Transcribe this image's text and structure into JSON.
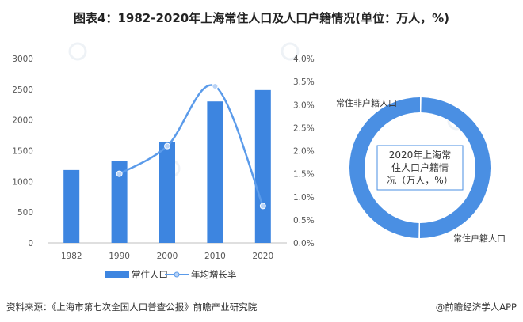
{
  "title": "图表4：1982-2020年上海常住人口及人口户籍情况(单位：万人，%)",
  "source": "资料来源：《上海市第七次全国人口普查公报》前瞻产业研究院",
  "brand": "@前瞻经济学人APP",
  "chart_data": [
    {
      "type": "bar",
      "categories": [
        "1982",
        "1990",
        "2000",
        "2010",
        "2020"
      ],
      "series": [
        {
          "name": "常住人口",
          "type": "bar",
          "axis": "left",
          "color": "#3d85e0",
          "values": [
            1186,
            1334,
            1641,
            2302,
            2487
          ]
        },
        {
          "name": "年均增长率",
          "type": "line",
          "axis": "right",
          "color": "#5b9bea",
          "values": [
            null,
            1.5,
            2.1,
            3.4,
            0.8
          ]
        }
      ],
      "ylim": [
        0,
        3000
      ],
      "yticks": [
        "0",
        "500",
        "1000",
        "1500",
        "2000",
        "2500",
        "3000"
      ],
      "y2lim": [
        0,
        4.0
      ],
      "y2ticks": [
        "0.0%",
        "0.5%",
        "1.0%",
        "1.5%",
        "2.0%",
        "2.5%",
        "3.0%",
        "3.5%",
        "4.0%"
      ],
      "grid": false,
      "legend": "bottom"
    },
    {
      "type": "pie",
      "center_label": "2020年上海常住人口户籍情况（万人，%）",
      "center_label_lines": [
        "2020年上海常",
        "住人口户籍情",
        "况（万人，%）"
      ],
      "slices": [
        {
          "name": "常住户籍人口",
          "value": 1048,
          "color": "#4a8fe3"
        },
        {
          "name": "常住非户籍人口",
          "value": 1048,
          "color": "#4a8fe3"
        }
      ]
    }
  ]
}
